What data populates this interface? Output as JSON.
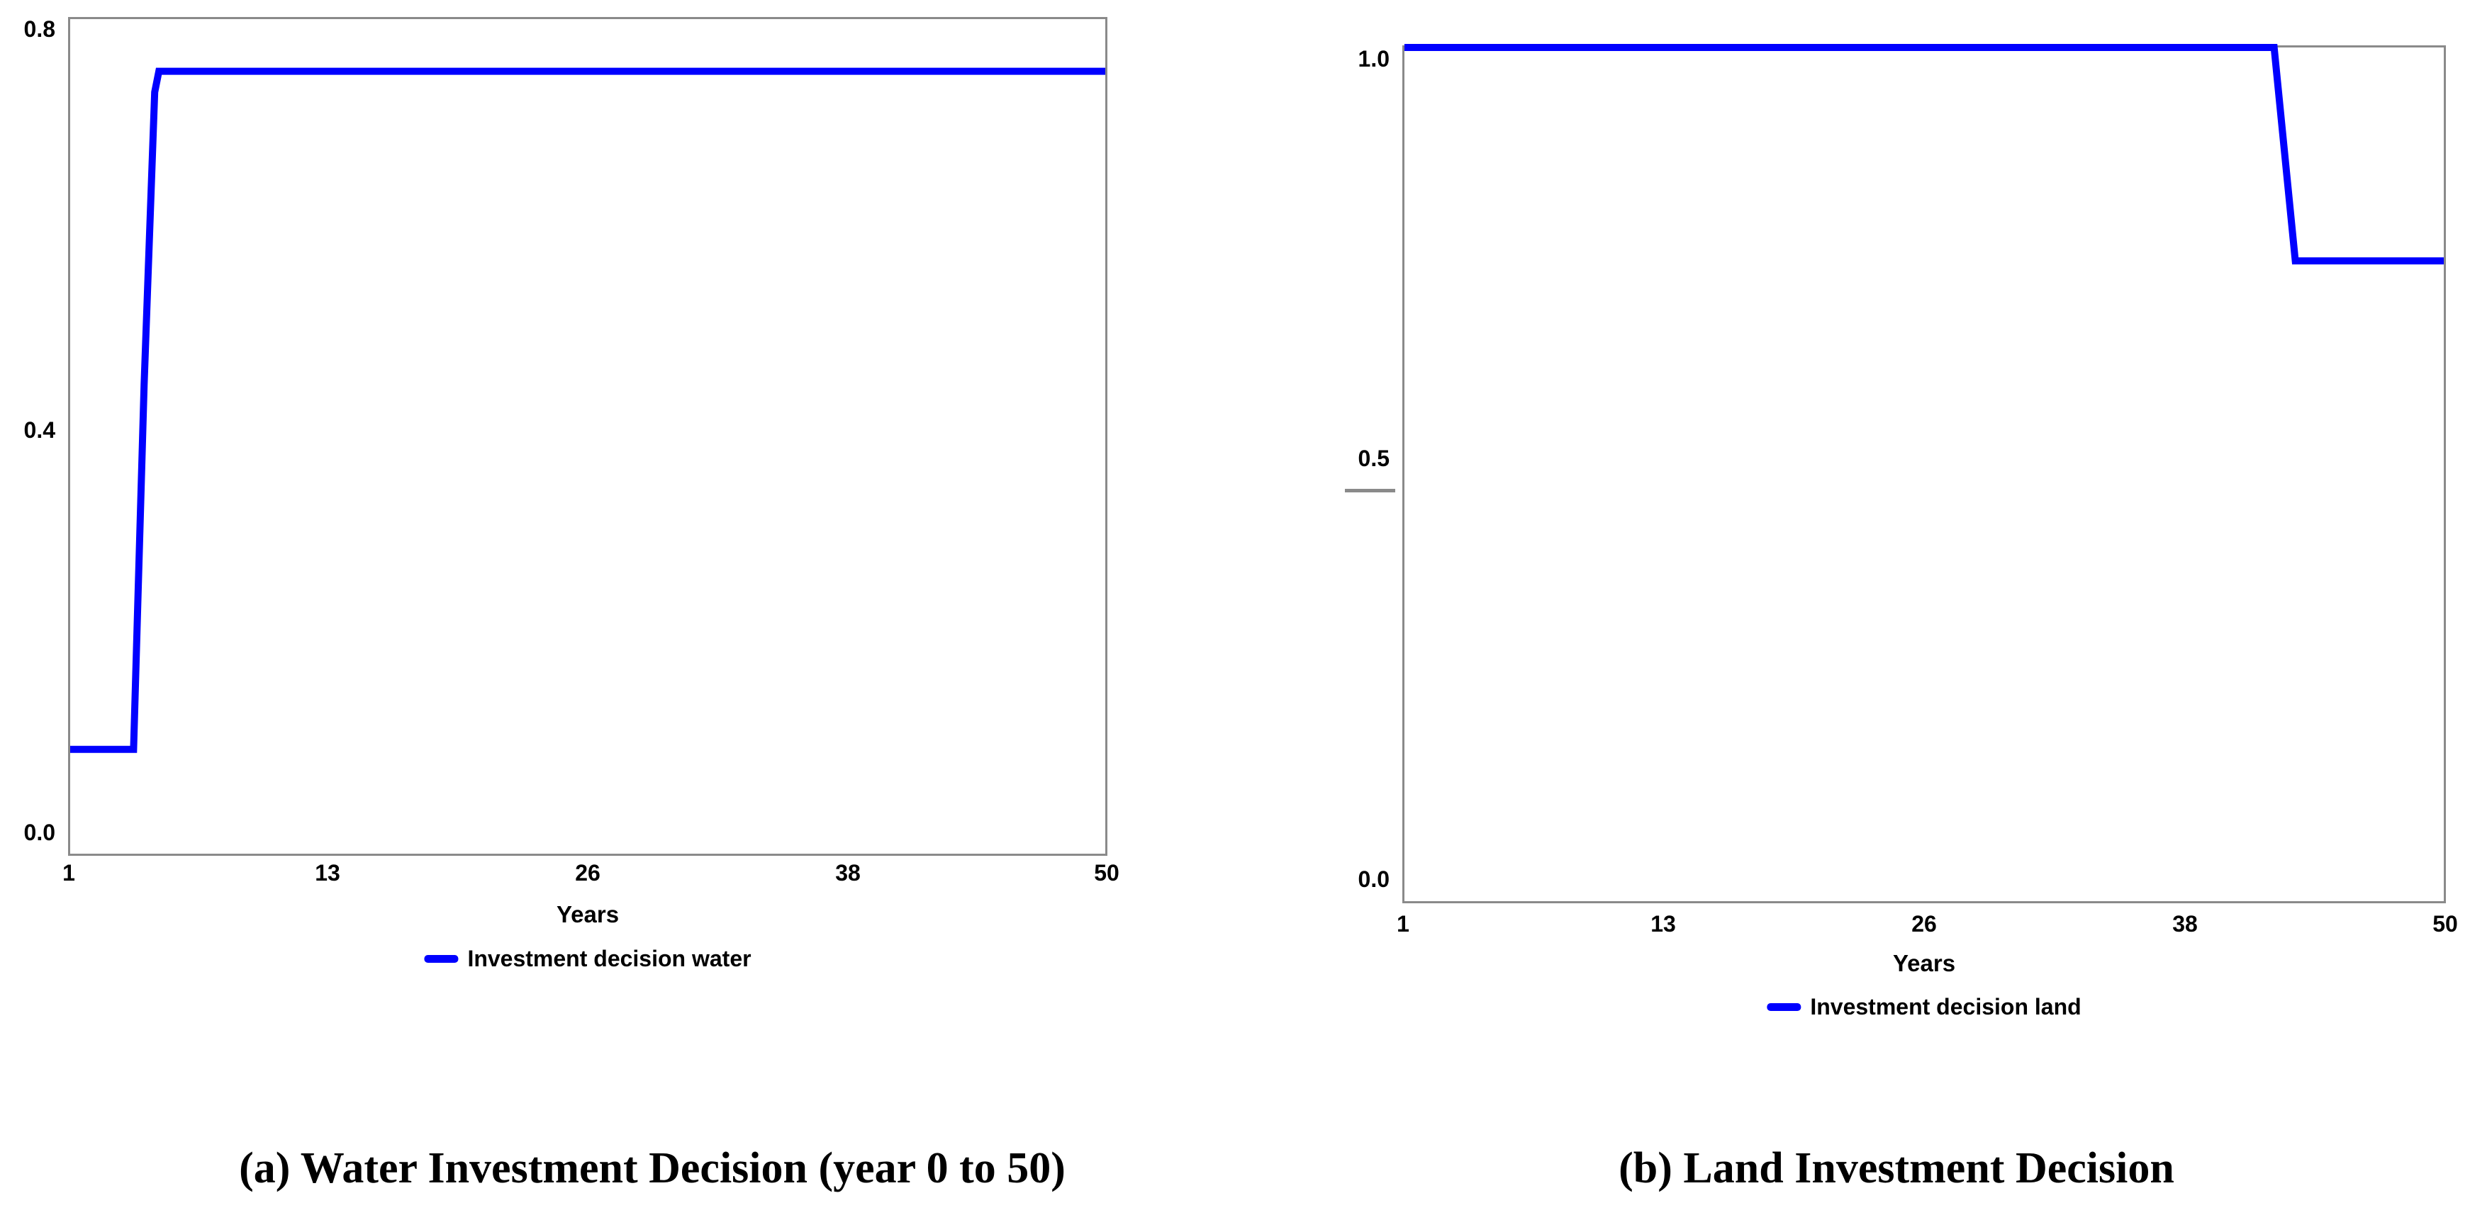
{
  "colors": {
    "line": "#0000ff",
    "frame": "#8a8a8a",
    "text": "#000000"
  },
  "chart_data": [
    {
      "id": "water-investment",
      "type": "line",
      "caption": "(a) Water Investment Decision (year 0 to 50)",
      "xlabel": "Years",
      "x_tick_labels": [
        "1",
        "13",
        "26",
        "38",
        "50"
      ],
      "y_tick_labels": [
        "0.8",
        "0.4",
        "0.0"
      ],
      "xlim": [
        1,
        50
      ],
      "ylim": [
        0,
        0.8
      ],
      "grid": false,
      "legend_position": "bottom",
      "series": [
        {
          "name": "Investment decision water",
          "color": "#0000ff",
          "points": [
            [
              1,
              0.1
            ],
            [
              4,
              0.1
            ],
            [
              4.5,
              0.45
            ],
            [
              5,
              0.73
            ],
            [
              5.2,
              0.75
            ],
            [
              50,
              0.75
            ]
          ]
        }
      ]
    },
    {
      "id": "land-investment",
      "type": "line",
      "caption": "(b) Land Investment Decision",
      "xlabel": "Years",
      "x_tick_labels": [
        "1",
        "13",
        "26",
        "38",
        "50"
      ],
      "y_tick_labels": [
        "1.0",
        "0.5",
        "0.0"
      ],
      "underlined_y_tick": "0.5",
      "xlim": [
        1,
        50
      ],
      "ylim": [
        0,
        1.0
      ],
      "grid": false,
      "legend_position": "bottom",
      "series": [
        {
          "name": "Investment decision land",
          "color": "#0000ff",
          "points": [
            [
              1,
              1.0
            ],
            [
              42,
              1.0
            ],
            [
              43,
              0.75
            ],
            [
              50,
              0.75
            ]
          ]
        }
      ]
    }
  ]
}
